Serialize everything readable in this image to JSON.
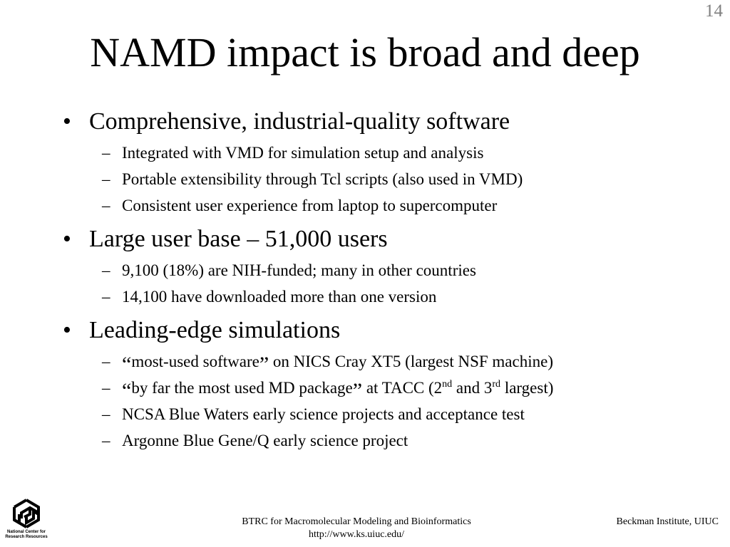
{
  "slide": {
    "number": "14",
    "title": "NAMD impact is broad and deep"
  },
  "bullets": [
    {
      "text": "Comprehensive, industrial-quality software",
      "subs": [
        "Integrated with VMD for simulation setup and analysis",
        "Portable extensibility through Tcl scripts (also used in VMD)",
        "Consistent user experience from laptop to supercomputer"
      ]
    },
    {
      "text": "Large user base – 51,000 users",
      "subs": [
        "9,100 (18%) are NIH-funded; many in other countries",
        "14,100 have downloaded more than one version"
      ]
    },
    {
      "text": "Leading-edge simulations",
      "rich_subs": {
        "line1": {
          "open_quote": "“",
          "quoted": "most-used software",
          "close_quote": "”",
          "rest": " on NICS Cray XT5 (largest NSF machine)"
        },
        "line2": {
          "open_quote": "“",
          "quoted": "by far the most used MD package",
          "close_quote": "”",
          "before_2": " at TACC (2",
          "sup_2": "nd",
          "middle": " and 3",
          "sup_3": "rd",
          "end": " largest)"
        }
      },
      "subs": [
        "NCSA Blue Waters early science projects and acceptance test",
        "Argonne Blue Gene/Q early science project"
      ]
    }
  ],
  "markers": {
    "bullet": "•",
    "dash": "–"
  },
  "footer": {
    "center_line1": "BTRC for Macromolecular Modeling and Bioinformatics",
    "center_line2": "http://www.ks.uiuc.edu/",
    "right": "Beckman Institute, UIUC"
  },
  "logo": {
    "icon": "ncsa-logo-icon",
    "caption_line1": "National Center for",
    "caption_line2": "Research Resources"
  }
}
